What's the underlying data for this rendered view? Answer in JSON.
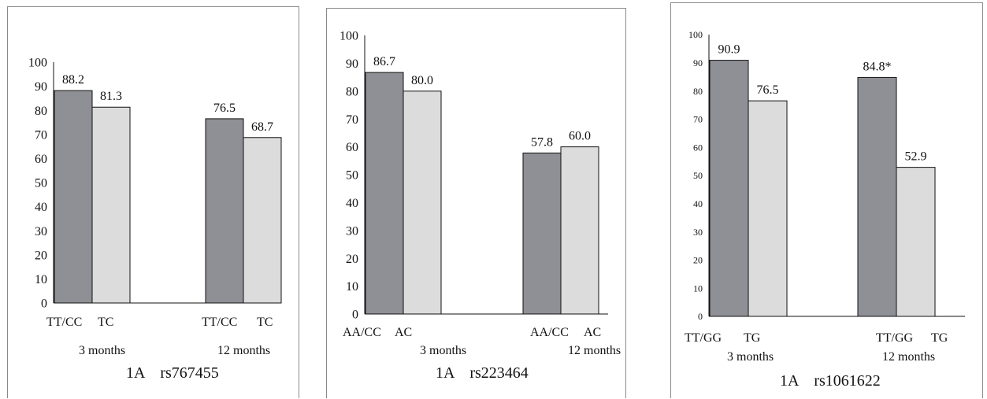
{
  "colors": {
    "dark_bar": "#8f9095",
    "light_bar": "#dcdcdd",
    "outline": "#111111"
  },
  "chart_data": [
    {
      "type": "bar",
      "caption": "1A    rs767455",
      "categories": [
        "3 months",
        "12 months"
      ],
      "series": [
        {
          "tick": "TT/CC",
          "values": [
            88.2,
            76.5
          ]
        },
        {
          "tick": "TC",
          "values": [
            81.3,
            68.7
          ]
        }
      ],
      "data_labels": [
        [
          "88.2",
          "81.3"
        ],
        [
          "76.5",
          "68.7"
        ]
      ],
      "ylim": [
        0,
        100
      ],
      "yticks": [
        0,
        10,
        20,
        30,
        40,
        50,
        60,
        70,
        80,
        90,
        100
      ],
      "grid": false
    },
    {
      "type": "bar",
      "caption": "1A    rs223464",
      "categories": [
        "3 months",
        "12 months"
      ],
      "series": [
        {
          "tick": "AA/CC",
          "values": [
            86.7,
            57.8
          ]
        },
        {
          "tick": "AC",
          "values": [
            80.0,
            60.0
          ]
        }
      ],
      "data_labels": [
        [
          "86.7",
          "80.0"
        ],
        [
          "57.8",
          "60.0"
        ]
      ],
      "ylim": [
        0,
        100
      ],
      "yticks": [
        0,
        10,
        20,
        30,
        40,
        50,
        60,
        70,
        80,
        90,
        100
      ],
      "grid": false
    },
    {
      "type": "bar",
      "caption": "1A    rs1061622",
      "categories": [
        "3 months",
        "12 months"
      ],
      "series": [
        {
          "tick": "TT/GG",
          "values": [
            90.9,
            84.8
          ]
        },
        {
          "tick": "TG",
          "values": [
            76.5,
            52.9
          ]
        }
      ],
      "data_labels": [
        [
          "90.9",
          "76.5"
        ],
        [
          "84.8*",
          "52.9"
        ]
      ],
      "ylim": [
        0,
        100
      ],
      "yticks": [
        0,
        10,
        20,
        30,
        40,
        50,
        60,
        70,
        80,
        90,
        100
      ],
      "grid": false
    }
  ]
}
